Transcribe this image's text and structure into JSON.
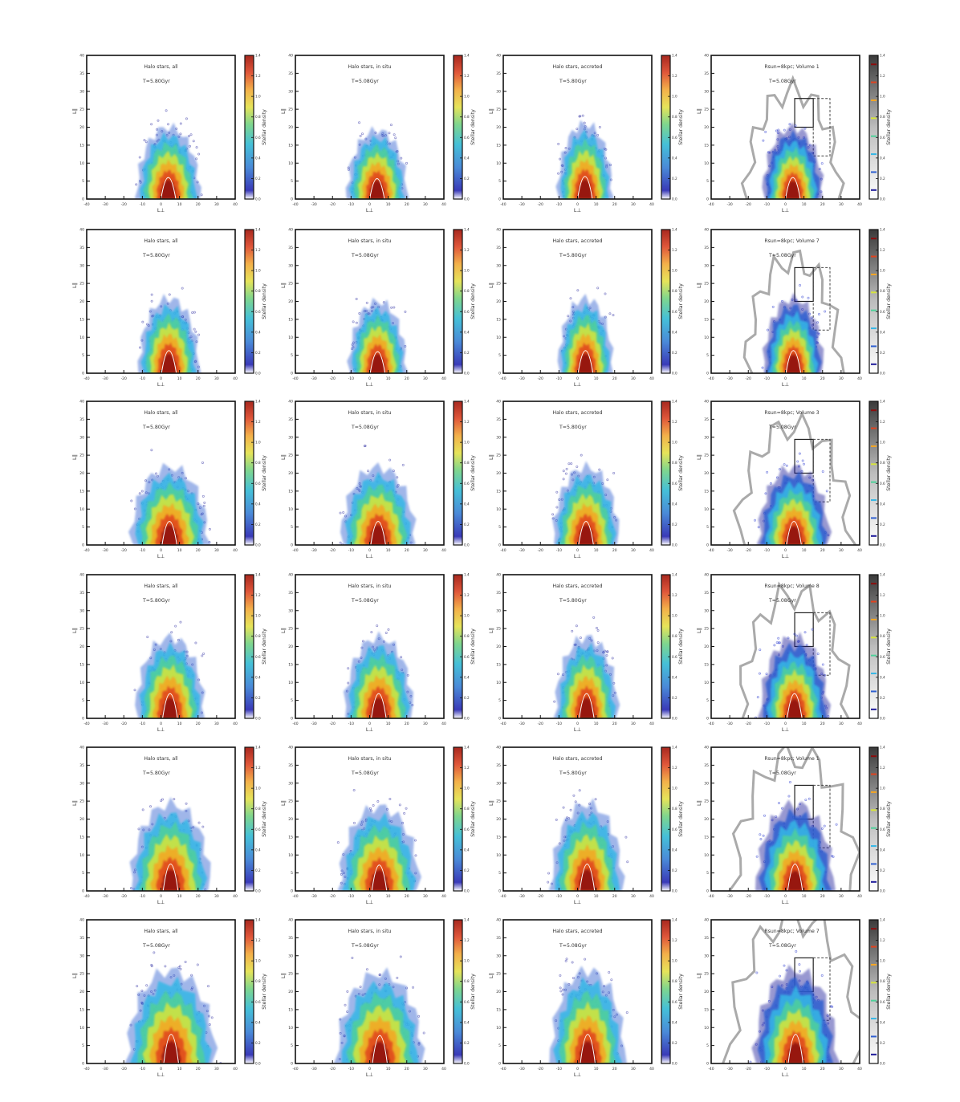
{
  "figure": {
    "colorbar_label": "Stellar density",
    "xlabel": "L⊥",
    "ylabel": "L∥"
  },
  "chart_data": {
    "type": "heatmap",
    "rows": [
      {
        "panels": [
          {
            "title": "Halo stars, all",
            "subtitle": "T=5.80Gyr",
            "style": "halo",
            "spread": 1.0,
            "height": 1.0
          },
          {
            "title": "Halo stars, in situ",
            "subtitle": "T=5.08Gyr",
            "style": "halo",
            "spread": 0.95,
            "height": 0.95
          },
          {
            "title": "Halo stars, accreted",
            "subtitle": "T=5.80Gyr",
            "style": "halo",
            "spread": 0.85,
            "height": 1.05
          },
          {
            "title": "Rsun=8kpc; Volume 1",
            "subtitle": "T=5.08Gyr",
            "style": "volume",
            "spread": 0.95,
            "height": 1.0
          }
        ]
      },
      {
        "panels": [
          {
            "title": "Halo stars, all",
            "subtitle": "T=5.80Gyr",
            "style": "halo",
            "spread": 0.95,
            "height": 1.05
          },
          {
            "title": "Halo stars, in situ",
            "subtitle": "T=5.08Gyr",
            "style": "halo",
            "spread": 0.9,
            "height": 1.0
          },
          {
            "title": "Halo stars, accreted",
            "subtitle": "T=5.80Gyr",
            "style": "halo",
            "spread": 0.85,
            "height": 1.05
          },
          {
            "title": "Rsun=8kpc; Volume 7",
            "subtitle": "T=5.08Gyr",
            "style": "volume",
            "spread": 0.95,
            "height": 1.05
          }
        ]
      },
      {
        "panels": [
          {
            "title": "Halo stars, all",
            "subtitle": "T=5.80Gyr",
            "style": "halo",
            "spread": 1.25,
            "height": 1.1
          },
          {
            "title": "Halo stars, in situ",
            "subtitle": "T=5.08Gyr",
            "style": "halo",
            "spread": 1.2,
            "height": 1.1
          },
          {
            "title": "Halo stars, accreted",
            "subtitle": "T=5.80Gyr",
            "style": "halo",
            "spread": 1.05,
            "height": 1.1
          },
          {
            "title": "Rsun=8kpc; Volume 3",
            "subtitle": "T=5.08Gyr",
            "style": "volume",
            "spread": 1.15,
            "height": 1.1
          }
        ]
      },
      {
        "panels": [
          {
            "title": "Halo stars, all",
            "subtitle": "T=5.80Gyr",
            "style": "halo",
            "spread": 1.1,
            "height": 1.15
          },
          {
            "title": "Halo stars, in situ",
            "subtitle": "T=5.08Gyr",
            "style": "halo",
            "spread": 1.1,
            "height": 1.15
          },
          {
            "title": "Halo stars, accreted",
            "subtitle": "T=5.80Gyr",
            "style": "halo",
            "spread": 1.0,
            "height": 1.15
          },
          {
            "title": "Rsun=8kpc; Volume 8",
            "subtitle": "T=5.08Gyr",
            "style": "volume",
            "spread": 1.1,
            "height": 1.15
          }
        ]
      },
      {
        "panels": [
          {
            "title": "Halo stars, all",
            "subtitle": "T=5.80Gyr",
            "style": "halo",
            "spread": 1.3,
            "height": 1.25
          },
          {
            "title": "Halo stars, in situ",
            "subtitle": "T=5.08Gyr",
            "style": "halo",
            "spread": 1.3,
            "height": 1.2
          },
          {
            "title": "Halo stars, accreted",
            "subtitle": "T=5.80Gyr",
            "style": "halo",
            "spread": 1.15,
            "height": 1.25
          },
          {
            "title": "Rsun=8kpc; Volume 1",
            "subtitle": "T=5.08Gyr",
            "style": "volume",
            "spread": 1.25,
            "height": 1.25
          }
        ]
      },
      {
        "panels": [
          {
            "title": "Halo stars, all",
            "subtitle": "T=5.08Gyr",
            "style": "halo",
            "spread": 1.45,
            "height": 1.35
          },
          {
            "title": "Halo stars, in situ",
            "subtitle": "T=5.08Gyr",
            "style": "halo",
            "spread": 1.4,
            "height": 1.3
          },
          {
            "title": "Halo stars, accreted",
            "subtitle": "T=5.08Gyr",
            "style": "halo",
            "spread": 1.2,
            "height": 1.35
          },
          {
            "title": "Rsun=8kpc; Volume 7",
            "subtitle": "T=5.08Gyr",
            "style": "volume",
            "spread": 1.35,
            "height": 1.35
          }
        ]
      }
    ],
    "xlim": [
      -40,
      40
    ],
    "ylim": [
      0,
      40
    ],
    "xticks": [
      -40,
      -30,
      -20,
      -10,
      0,
      10,
      20,
      30,
      40
    ],
    "yticks": [
      0,
      5,
      10,
      15,
      20,
      25,
      30,
      35,
      40
    ],
    "colorbar_range": [
      0,
      1.4
    ],
    "colorbar_ticks": [
      0.0,
      0.2,
      0.4,
      0.6,
      0.8,
      1.0,
      1.2,
      1.4
    ],
    "colormap": [
      "#1f1b9a",
      "#2f5fd0",
      "#35b7e6",
      "#4fd09a",
      "#d7e53a",
      "#f5a623",
      "#e0431f",
      "#8b0d0d"
    ],
    "grid": false
  }
}
